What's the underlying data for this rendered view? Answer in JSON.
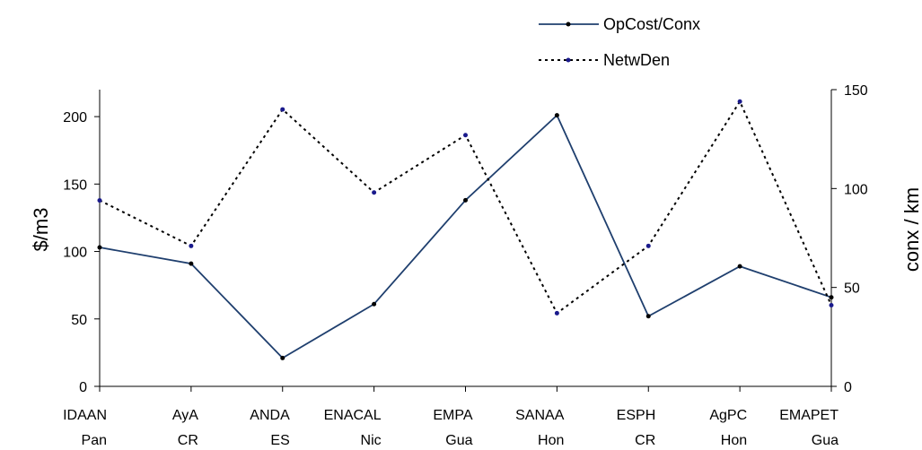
{
  "chart_data": {
    "type": "line",
    "title": "",
    "categories": [
      [
        "IDAAN",
        "Pan"
      ],
      [
        "AyA",
        "CR"
      ],
      [
        "ANDA",
        "ES"
      ],
      [
        "ENACAL",
        "Nic"
      ],
      [
        "EMPA",
        "Gua"
      ],
      [
        "SANAA",
        "Hon"
      ],
      [
        "ESPH",
        "CR"
      ],
      [
        "AgPC",
        "Hon"
      ],
      [
        "EMAPET",
        "Gua"
      ]
    ],
    "series": [
      {
        "name": "OpCost/Conx",
        "axis": "left",
        "style": "solid",
        "color": "#1f3f6e",
        "marker_color": "#000000",
        "values": [
          103,
          91,
          21,
          61,
          138,
          201,
          52,
          89,
          66
        ]
      },
      {
        "name": "NetwDen",
        "axis": "right",
        "style": "dotted",
        "color": "#000000",
        "marker_color": "#1a1a8c",
        "values": [
          94,
          71,
          140,
          98,
          127,
          37,
          71,
          144,
          41
        ]
      }
    ],
    "ylabel_left": "$/m3",
    "ylabel_right": "conx / km",
    "ylim_left": [
      0,
      220
    ],
    "ylim_right": [
      0,
      150
    ],
    "yticks_left": [
      0,
      50,
      100,
      150,
      200
    ],
    "yticks_right": [
      0,
      50,
      100,
      150
    ],
    "grid": false,
    "legend_position": "top-right"
  }
}
